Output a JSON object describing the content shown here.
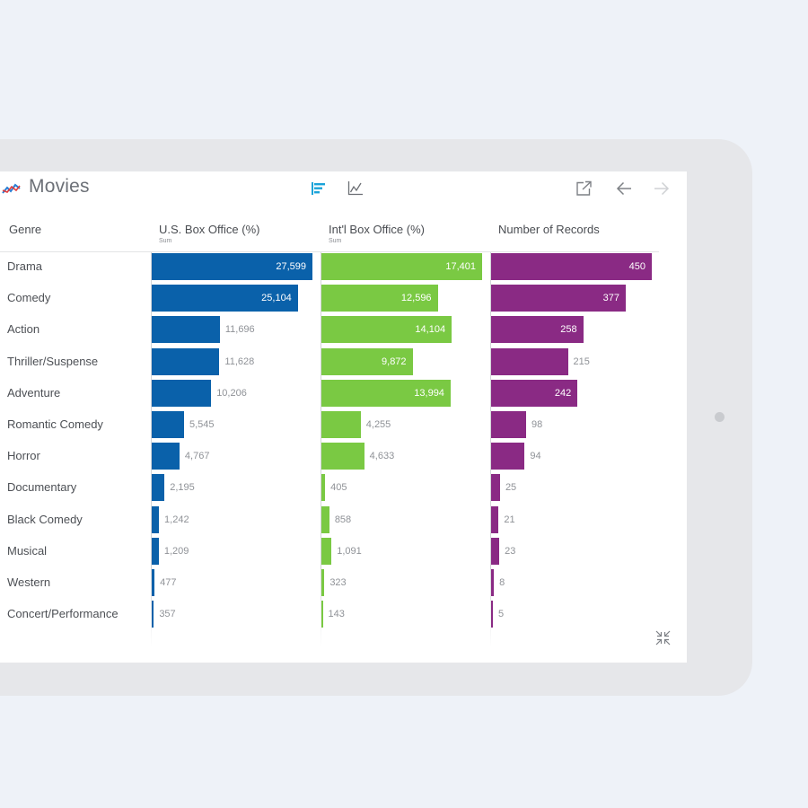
{
  "header": {
    "title": "Movies",
    "icons": {
      "logo": "line-trend-icon",
      "bar_view": "bar-chart-icon",
      "line_view": "line-chart-icon",
      "open_external": "external-link-icon",
      "back": "arrow-left-icon",
      "forward": "arrow-right-icon",
      "compress": "compress-icon"
    }
  },
  "table": {
    "genre_header": "Genre",
    "columns": [
      {
        "label": "U.S. Box Office (%)",
        "sublabel": "Sum",
        "color": "#0a61aa"
      },
      {
        "label": "Int'l Box Office (%)",
        "sublabel": "Sum",
        "color": "#7ac943"
      },
      {
        "label": "Number of Records",
        "sublabel": "",
        "color": "#8a2a84"
      }
    ]
  },
  "chart_data": {
    "type": "bar",
    "categories": [
      "Drama",
      "Comedy",
      "Action",
      "Thriller/Suspense",
      "Adventure",
      "Romantic Comedy",
      "Horror",
      "Documentary",
      "Black Comedy",
      "Musical",
      "Western",
      "Concert/Performance"
    ],
    "series": [
      {
        "name": "U.S. Box Office (%)",
        "values": [
          27599,
          25104,
          11696,
          11628,
          10206,
          5545,
          4767,
          2195,
          1242,
          1209,
          477,
          357
        ],
        "labels": [
          "27,599",
          "25,104",
          "11,696",
          "11,628",
          "10,206",
          "5,545",
          "4,767",
          "2,195",
          "1,242",
          "1,209",
          "477",
          "357"
        ]
      },
      {
        "name": "Int'l Box Office (%)",
        "values": [
          17401,
          12596,
          14104,
          9872,
          13994,
          4255,
          4633,
          405,
          858,
          1091,
          323,
          143
        ],
        "labels": [
          "17,401",
          "12,596",
          "14,104",
          "9,872",
          "13,994",
          "4,255",
          "4,633",
          "405",
          "858",
          "1,091",
          "323",
          "143"
        ]
      },
      {
        "name": "Number of Records",
        "values": [
          450,
          377,
          258,
          215,
          242,
          98,
          94,
          25,
          21,
          23,
          8,
          5
        ],
        "labels": [
          "450",
          "377",
          "258",
          "215",
          "242",
          "98",
          "94",
          "25",
          "21",
          "23",
          "8",
          "5"
        ]
      }
    ]
  }
}
